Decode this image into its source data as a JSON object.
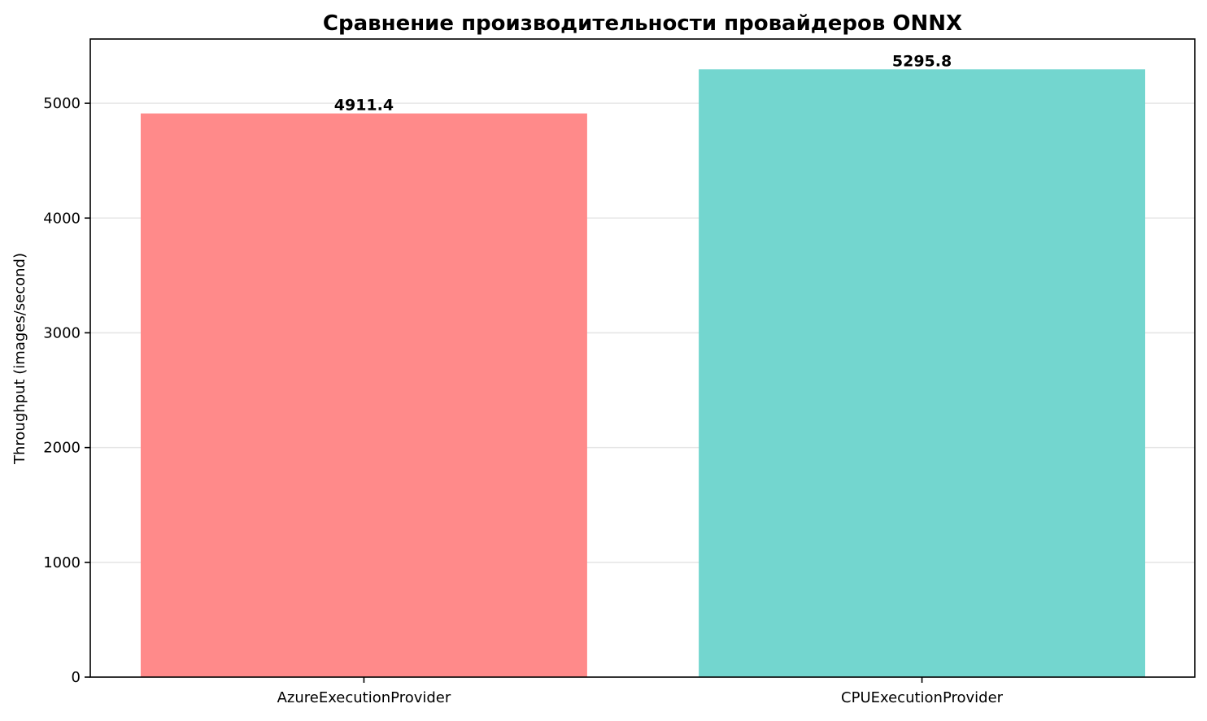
{
  "chart_data": {
    "type": "bar",
    "title": "Сравнение производительности провайдеров ONNX",
    "xlabel": "",
    "ylabel": "Throughput (images/second)",
    "categories": [
      "AzureExecutionProvider",
      "CPUExecutionProvider"
    ],
    "values": [
      4911.4,
      5295.8
    ],
    "value_labels": [
      "4911.4",
      "5295.8"
    ],
    "colors": [
      "#ff8a8a",
      "#73d6cf"
    ],
    "ylim": [
      0,
      5560
    ],
    "yticks": [
      0,
      1000,
      2000,
      3000,
      4000,
      5000
    ],
    "grid": "y-axis",
    "legend": "none"
  }
}
